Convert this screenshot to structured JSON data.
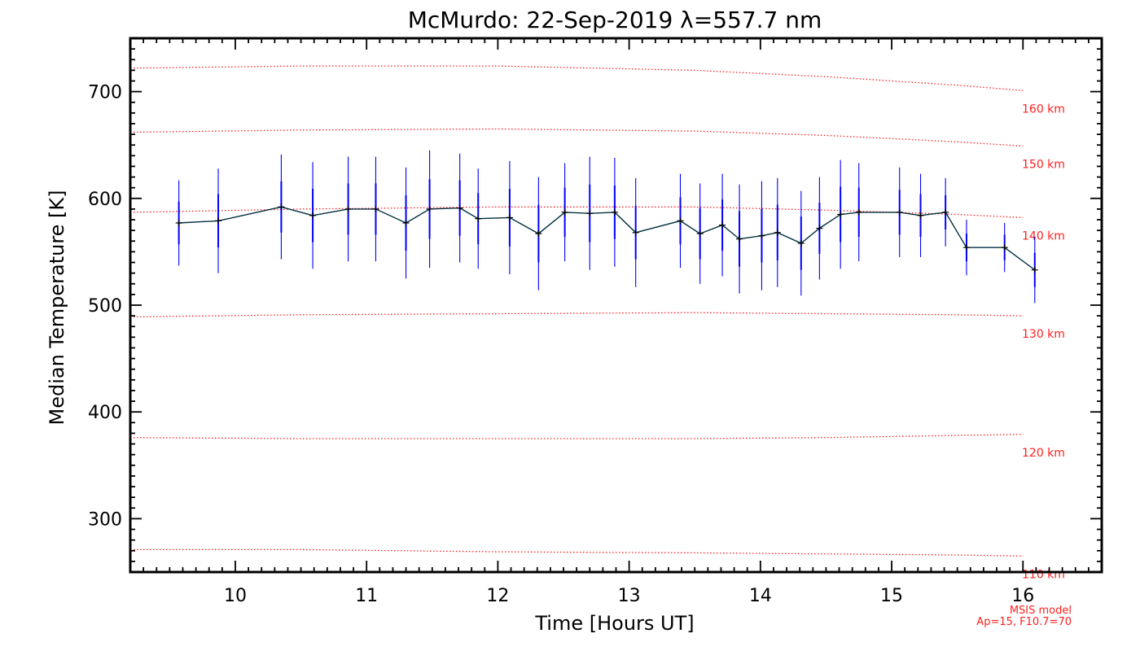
{
  "chart_data": {
    "type": "line",
    "title": "McMurdo: 22-Sep-2019 λ=557.7 nm",
    "xlabel": "Time [Hours UT]",
    "ylabel": "Median Temperature [K]",
    "xlim": [
      9.2,
      16.6
    ],
    "ylim": [
      250,
      750
    ],
    "xticks": [
      10,
      11,
      12,
      13,
      14,
      15,
      16
    ],
    "yticks": [
      300,
      400,
      500,
      600,
      700
    ],
    "series": [
      {
        "name": "Median Temperature",
        "color": "#003040",
        "errorbar_color": "#0000ff",
        "x": [
          9.57,
          9.87,
          10.35,
          10.59,
          10.86,
          11.07,
          11.3,
          11.48,
          11.71,
          11.85,
          12.09,
          12.31,
          12.51,
          12.7,
          12.89,
          13.05,
          13.39,
          13.54,
          13.71,
          13.84,
          14.01,
          14.13,
          14.31,
          14.45,
          14.61,
          14.75,
          15.06,
          15.22,
          15.41,
          15.57,
          15.86,
          16.09
        ],
        "y": [
          577,
          579,
          592,
          584,
          590,
          590,
          577,
          590,
          591,
          581,
          582,
          567,
          587,
          586,
          587,
          568,
          579,
          567,
          575,
          562,
          565,
          568,
          558,
          572,
          585,
          587,
          587,
          584,
          587,
          554,
          554,
          533
        ],
        "err_outer": [
          40,
          49,
          49,
          50,
          49,
          49,
          52,
          55,
          51,
          47,
          53,
          53,
          46,
          53,
          51,
          51,
          44,
          47,
          48,
          51,
          51,
          51,
          49,
          48,
          51,
          46,
          42,
          39,
          32,
          26,
          23,
          31
        ],
        "err_inner": [
          20,
          25,
          24,
          25,
          24,
          24,
          26,
          28,
          26,
          24,
          27,
          27,
          23,
          27,
          25,
          25,
          22,
          24,
          24,
          26,
          25,
          26,
          25,
          24,
          26,
          23,
          21,
          20,
          16,
          13,
          12,
          16
        ]
      }
    ],
    "msis_curves": [
      {
        "label": "110 km",
        "x": [
          9.2,
          10.5,
          12.0,
          13.5,
          14.5,
          15.5,
          16.0
        ],
        "y": [
          271,
          271,
          269,
          268,
          267,
          266,
          265
        ]
      },
      {
        "label": "120 km",
        "x": [
          9.2,
          10.5,
          12.0,
          13.5,
          14.5,
          15.5,
          16.0
        ],
        "y": [
          376,
          375,
          375,
          375,
          376,
          378,
          379
        ]
      },
      {
        "label": "130 km",
        "x": [
          9.2,
          10.5,
          12.0,
          13.5,
          14.5,
          15.5,
          16.0
        ],
        "y": [
          489,
          491,
          492,
          493,
          492,
          491,
          490
        ]
      },
      {
        "label": "140 km",
        "x": [
          9.2,
          10.5,
          12.0,
          13.5,
          14.5,
          15.5,
          16.0
        ],
        "y": [
          587,
          590,
          592,
          592,
          589,
          585,
          582
        ]
      },
      {
        "label": "150 km",
        "x": [
          9.2,
          10.5,
          12.0,
          13.5,
          14.5,
          15.5,
          16.0
        ],
        "y": [
          662,
          664,
          665,
          663,
          659,
          653,
          649
        ]
      },
      {
        "label": "160 km",
        "x": [
          9.2,
          10.5,
          12.0,
          13.5,
          14.5,
          15.5,
          16.0
        ],
        "y": [
          722,
          724,
          724,
          720,
          714,
          706,
          701
        ]
      }
    ],
    "annotations": [
      "MSIS model",
      "Ap=15, F10.7=70"
    ]
  }
}
